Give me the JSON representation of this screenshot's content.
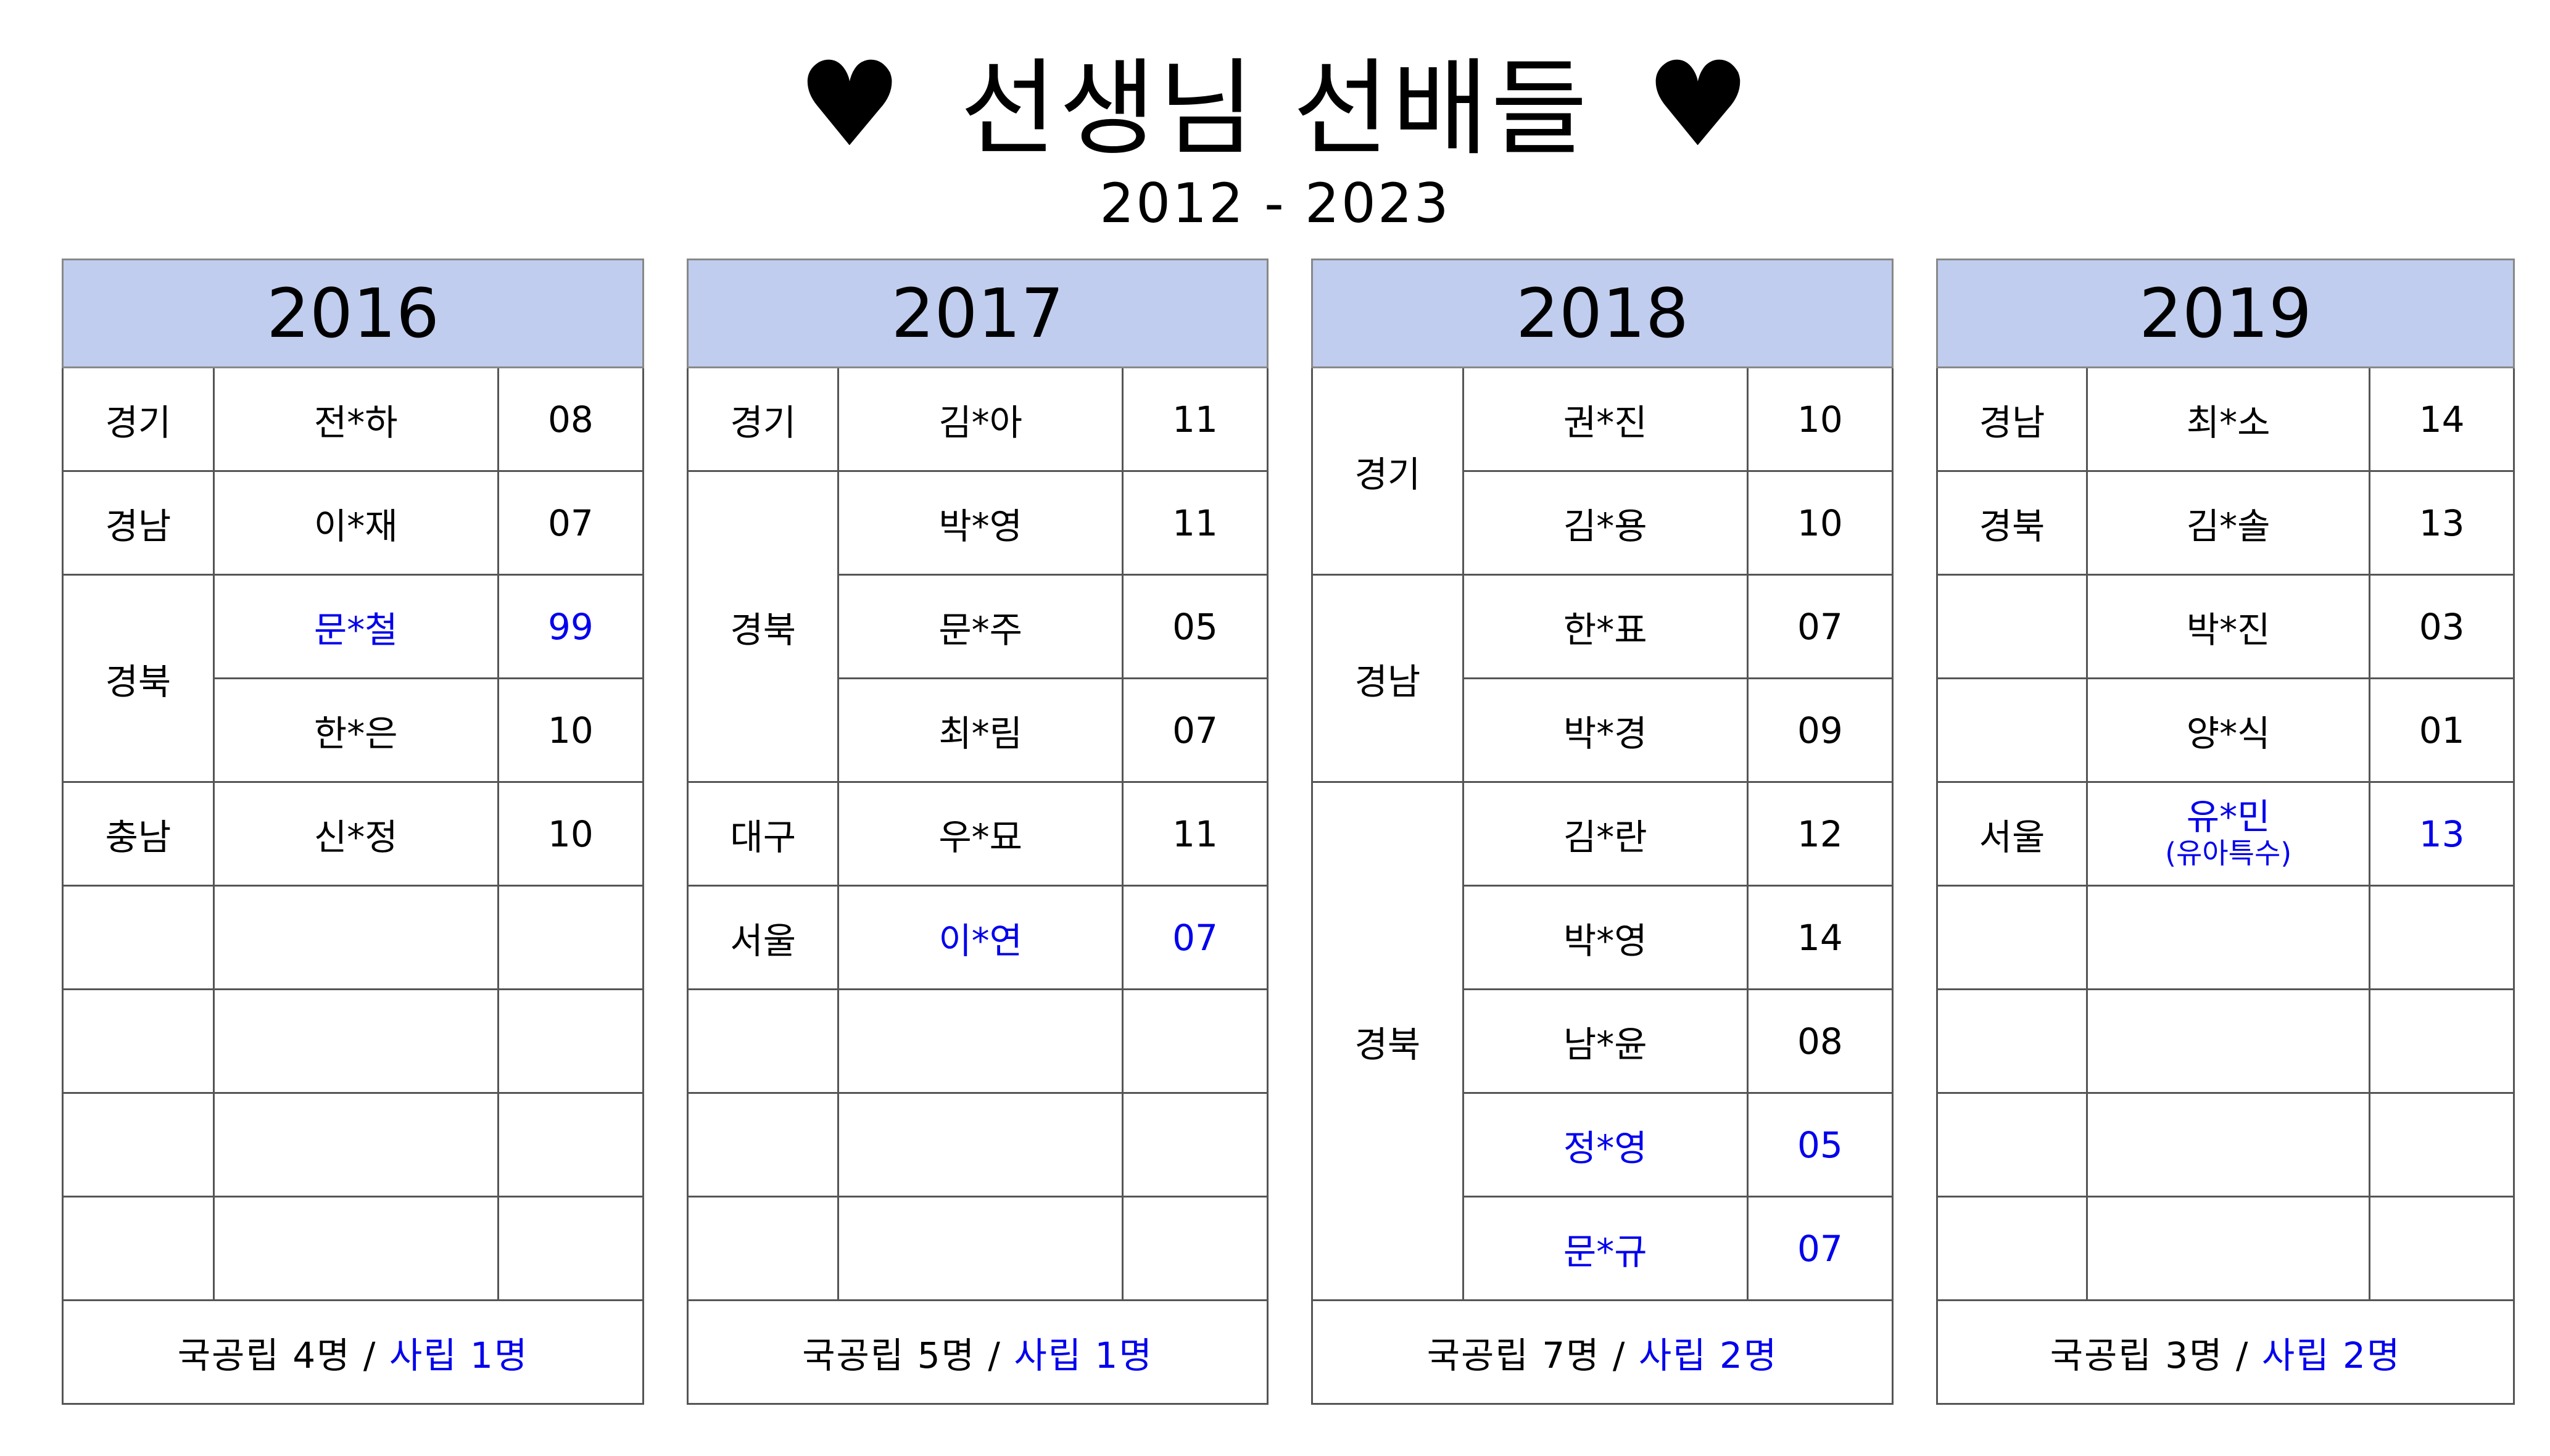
{
  "title": {
    "left_icon": "heart-icon",
    "right_icon": "heart-icon",
    "heart": "♥",
    "text": "선생님 선배들"
  },
  "subtitle": "2012 - 2023",
  "colors": {
    "header_bg": "#c0cdee",
    "highlight": "#0000ee",
    "text": "#000000"
  },
  "tables": [
    {
      "year": "2016",
      "rows": [
        {
          "region": "경기",
          "rowspan": 1,
          "name": "전*하",
          "count": "08"
        },
        {
          "region": "경남",
          "rowspan": 1,
          "name": "이*재",
          "count": "07"
        },
        {
          "region": "경북",
          "rowspan": 2,
          "name": "문*철",
          "count": "99",
          "highlight": true
        },
        {
          "name": "한*은",
          "count": "10"
        },
        {
          "region": "충남",
          "rowspan": 1,
          "name": "신*정",
          "count": "10"
        },
        {
          "region": "",
          "rowspan": 1,
          "name": "",
          "count": ""
        },
        {
          "region": "",
          "rowspan": 1,
          "name": "",
          "count": ""
        },
        {
          "region": "",
          "rowspan": 1,
          "name": "",
          "count": ""
        },
        {
          "region": "",
          "rowspan": 1,
          "name": "",
          "count": ""
        }
      ],
      "footer": {
        "public": "국공립 4명",
        "sep": " / ",
        "private": "사립 1명"
      }
    },
    {
      "year": "2017",
      "rows": [
        {
          "region": "경기",
          "rowspan": 1,
          "name": "김*아",
          "count": "11"
        },
        {
          "region": "경북",
          "rowspan": 3,
          "name": "박*영",
          "count": "11"
        },
        {
          "name": "문*주",
          "count": "05"
        },
        {
          "name": "최*림",
          "count": "07"
        },
        {
          "region": "대구",
          "rowspan": 1,
          "name": "우*묘",
          "count": "11"
        },
        {
          "region": "서울",
          "rowspan": 1,
          "name": "이*연",
          "count": "07",
          "highlight": true
        },
        {
          "region": "",
          "rowspan": 1,
          "name": "",
          "count": ""
        },
        {
          "region": "",
          "rowspan": 1,
          "name": "",
          "count": ""
        },
        {
          "region": "",
          "rowspan": 1,
          "name": "",
          "count": ""
        }
      ],
      "footer": {
        "public": "국공립 5명",
        "sep": " / ",
        "private": "사립 1명"
      }
    },
    {
      "year": "2018",
      "rows": [
        {
          "region": "경기",
          "rowspan": 2,
          "name": "권*진",
          "count": "10"
        },
        {
          "name": "김*용",
          "count": "10"
        },
        {
          "region": "경남",
          "rowspan": 2,
          "name": "한*표",
          "count": "07"
        },
        {
          "name": "박*경",
          "count": "09"
        },
        {
          "region": "경북",
          "rowspan": 5,
          "name": "김*란",
          "count": "12"
        },
        {
          "name": "박*영",
          "count": "14"
        },
        {
          "name": "남*윤",
          "count": "08"
        },
        {
          "name": "정*영",
          "count": "05",
          "highlight": true
        },
        {
          "name": "문*규",
          "count": "07",
          "highlight": true
        }
      ],
      "footer": {
        "public": "국공립 7명",
        "sep": " / ",
        "private": "사립 2명"
      }
    },
    {
      "year": "2019",
      "rows": [
        {
          "region": "경남",
          "rowspan": 1,
          "name": "최*소",
          "count": "14"
        },
        {
          "region": "경북",
          "rowspan": 1,
          "name": "김*솔",
          "count": "13"
        },
        {
          "region": "",
          "rowspan": 1,
          "name": "박*진",
          "count": "03"
        },
        {
          "region": "",
          "rowspan": 1,
          "name": "양*식",
          "count": "01"
        },
        {
          "region": "서울",
          "rowspan": 1,
          "name": "유*민",
          "name_sub": "(유아특수)",
          "count": "13",
          "highlight": true
        },
        {
          "region": "",
          "rowspan": 1,
          "name": "",
          "count": ""
        },
        {
          "region": "",
          "rowspan": 1,
          "name": "",
          "count": ""
        },
        {
          "region": "",
          "rowspan": 1,
          "name": "",
          "count": ""
        },
        {
          "region": "",
          "rowspan": 1,
          "name": "",
          "count": ""
        }
      ],
      "footer": {
        "public": "국공립 3명",
        "sep": " / ",
        "private": "사립 2명"
      }
    }
  ]
}
